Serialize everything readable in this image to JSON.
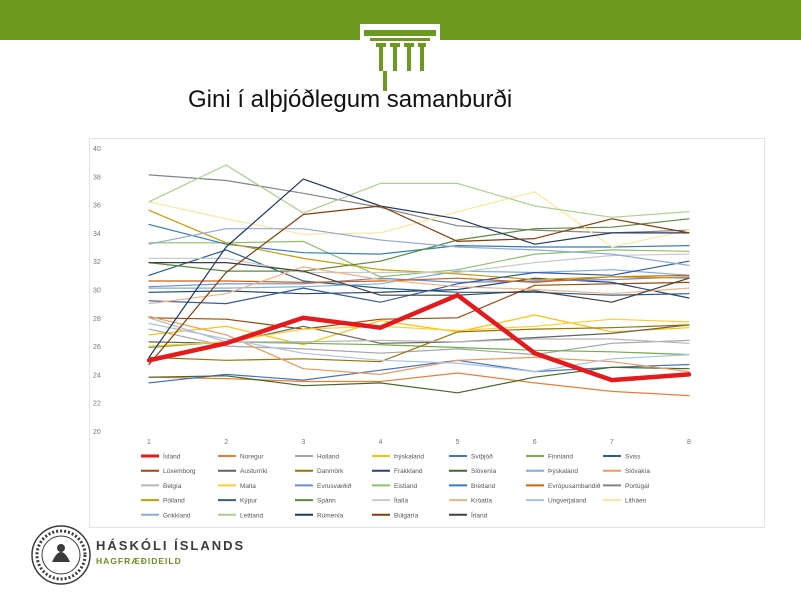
{
  "slide": {
    "title": "Gini í alþjóðlegum samanburði",
    "accent_color": "#6c9a1f",
    "footer_name": "HÁSKÓLI ÍSLANDS",
    "footer_dept": "HAGFRÆÐIDEILD"
  },
  "chart_data": {
    "type": "line",
    "title": "",
    "xlabel": "",
    "ylabel": "",
    "x": [
      1,
      2,
      3,
      4,
      5,
      6,
      7,
      8
    ],
    "ylim": [
      20,
      40
    ],
    "yticks": [
      20,
      22,
      24,
      26,
      28,
      30,
      32,
      34,
      36,
      38,
      40
    ],
    "grid": false,
    "legend_position": "bottom",
    "series": [
      {
        "name": "Ísland",
        "color": "#e41a1c",
        "width": 4.5,
        "values": [
          25.0,
          26.2,
          28.0,
          27.3,
          29.6,
          25.5,
          23.6,
          24.0
        ]
      },
      {
        "name": "Noregur",
        "color": "#ed7d31",
        "values": [
          23.8,
          23.7,
          23.5,
          23.5,
          24.1,
          23.4,
          22.8,
          22.5
        ]
      },
      {
        "name": "Holland",
        "color": "#a5a5a5",
        "values": [
          27.2,
          26.0,
          25.8,
          25.5,
          25.8,
          25.4,
          26.2,
          26.4
        ]
      },
      {
        "name": "Þýskaland",
        "color": "#ffc000",
        "values": [
          26.8,
          27.4,
          26.1,
          27.8,
          27.0,
          28.2,
          27.0,
          27.3
        ]
      },
      {
        "name": "Svíþjóð",
        "color": "#4472c4",
        "values": [
          23.4,
          24.0,
          23.6,
          24.3,
          25.0,
          24.2,
          24.5,
          24.7
        ]
      },
      {
        "name": "Finnland",
        "color": "#70ad47",
        "values": [
          25.9,
          26.3,
          26.2,
          26.1,
          25.9,
          25.7,
          25.6,
          25.4
        ]
      },
      {
        "name": "Sviss",
        "color": "#255e91",
        "values": [
          31.0,
          32.8,
          30.6,
          30.1,
          29.8,
          29.8,
          29.6,
          29.7
        ]
      },
      {
        "name": "Lúxemborg",
        "color": "#9e480e",
        "values": [
          28.0,
          27.9,
          27.2,
          27.9,
          28.0,
          30.3,
          30.4,
          30.5
        ]
      },
      {
        "name": "Austurríki",
        "color": "#636363",
        "values": [
          26.3,
          26.2,
          27.4,
          26.2,
          26.3,
          26.6,
          26.9,
          27.5
        ]
      },
      {
        "name": "Danmörk",
        "color": "#997300",
        "values": [
          25.2,
          25.0,
          25.1,
          24.9,
          27.0,
          27.2,
          27.3,
          27.5
        ]
      },
      {
        "name": "Frakkland",
        "color": "#264478",
        "values": [
          29.8,
          29.9,
          29.7,
          29.8,
          30.0,
          30.8,
          30.5,
          29.4
        ]
      },
      {
        "name": "Slóvenía",
        "color": "#43682b",
        "values": [
          23.8,
          23.9,
          23.2,
          23.4,
          22.7,
          23.8,
          24.5,
          24.4
        ]
      },
      {
        "name": "Þýskaland",
        "color": "#7cafdd",
        "values": [
          30.1,
          30.1,
          30.2,
          30.4,
          31.3,
          31.2,
          31.4,
          31.0
        ]
      },
      {
        "name": "Slóvakía",
        "color": "#f1975a",
        "values": [
          28.1,
          26.8,
          24.4,
          24.0,
          25.0,
          25.2,
          24.9,
          24.2
        ]
      },
      {
        "name": "Belgía",
        "color": "#b7b7b7",
        "values": [
          28.0,
          26.3,
          26.3,
          26.4,
          26.3,
          26.5,
          26.5,
          26.2
        ]
      },
      {
        "name": "Malta",
        "color": "#ffcd33",
        "values": [
          26.0,
          26.3,
          27.2,
          27.4,
          27.1,
          27.4,
          27.9,
          27.7
        ]
      },
      {
        "name": "Evrusvæðið",
        "color": "#698ed0",
        "values": [
          30.2,
          30.4,
          30.4,
          30.8,
          30.5,
          30.6,
          30.7,
          30.9
        ]
      },
      {
        "name": "Eistland",
        "color": "#8cc168",
        "values": [
          33.3,
          33.3,
          33.4,
          30.9,
          31.4,
          32.5,
          32.8,
          32.7
        ]
      },
      {
        "name": "Bretland",
        "color": "#327dc2",
        "values": [
          34.6,
          33.2,
          32.6,
          32.5,
          33.1,
          33.0,
          33.0,
          33.1
        ]
      },
      {
        "name": "Evrópusambandið",
        "color": "#d26012",
        "values": [
          30.6,
          30.6,
          30.5,
          30.6,
          30.8,
          30.5,
          30.9,
          31.0
        ]
      },
      {
        "name": "Portúgal",
        "color": "#848484",
        "values": [
          38.1,
          37.7,
          36.8,
          35.8,
          34.5,
          34.2,
          34.0,
          34.2
        ]
      },
      {
        "name": "Pólland",
        "color": "#cc9a00",
        "values": [
          35.6,
          33.3,
          32.2,
          31.4,
          31.1,
          30.7,
          30.9,
          30.8
        ]
      },
      {
        "name": "Kýpur",
        "color": "#335aa1",
        "values": [
          29.2,
          29.0,
          30.1,
          29.1,
          30.4,
          31.2,
          31.0,
          32.0
        ]
      },
      {
        "name": "Spánn",
        "color": "#5a8a39",
        "values": [
          31.9,
          31.3,
          31.3,
          32.0,
          33.5,
          34.3,
          34.4,
          35.0
        ]
      },
      {
        "name": "Ítalía",
        "color": "#c9c9c9",
        "values": [
          32.2,
          32.2,
          31.2,
          31.2,
          31.2,
          31.9,
          32.4,
          32.5
        ]
      },
      {
        "name": "Króatía",
        "color": "#f4b183",
        "values": [
          29.0,
          29.7,
          31.6,
          30.7,
          30.2,
          30.0,
          29.7,
          30.1
        ]
      },
      {
        "name": "Ungverjaland",
        "color": "#a9c2e8",
        "values": [
          27.6,
          26.5,
          25.5,
          25.0,
          24.8,
          24.2,
          25.1,
          25.4
        ]
      },
      {
        "name": "Litháen",
        "color": "#ffe699",
        "values": [
          36.2,
          35.0,
          33.9,
          34.0,
          35.5,
          36.9,
          33.0,
          34.2
        ]
      },
      {
        "name": "Grikkland",
        "color": "#8fa9d8",
        "values": [
          33.2,
          34.3,
          34.3,
          33.5,
          33.0,
          32.8,
          32.5,
          31.7
        ]
      },
      {
        "name": "Lettland",
        "color": "#a9d18e",
        "values": [
          36.2,
          38.8,
          35.4,
          37.5,
          37.5,
          35.9,
          35.1,
          35.5
        ]
      },
      {
        "name": "Rúmenía",
        "color": "#1f3864",
        "values": [
          25.2,
          33.0,
          37.8,
          35.9,
          35.0,
          33.2,
          34.0,
          34.0
        ]
      },
      {
        "name": "Búlgaría",
        "color": "#843c0c",
        "values": [
          24.7,
          31.2,
          35.3,
          35.9,
          33.4,
          33.6,
          35.0,
          34.0
        ]
      },
      {
        "name": "Írland",
        "color": "#404040",
        "values": [
          31.9,
          31.9,
          31.3,
          29.6,
          29.6,
          29.9,
          29.1,
          30.8
        ]
      }
    ]
  }
}
